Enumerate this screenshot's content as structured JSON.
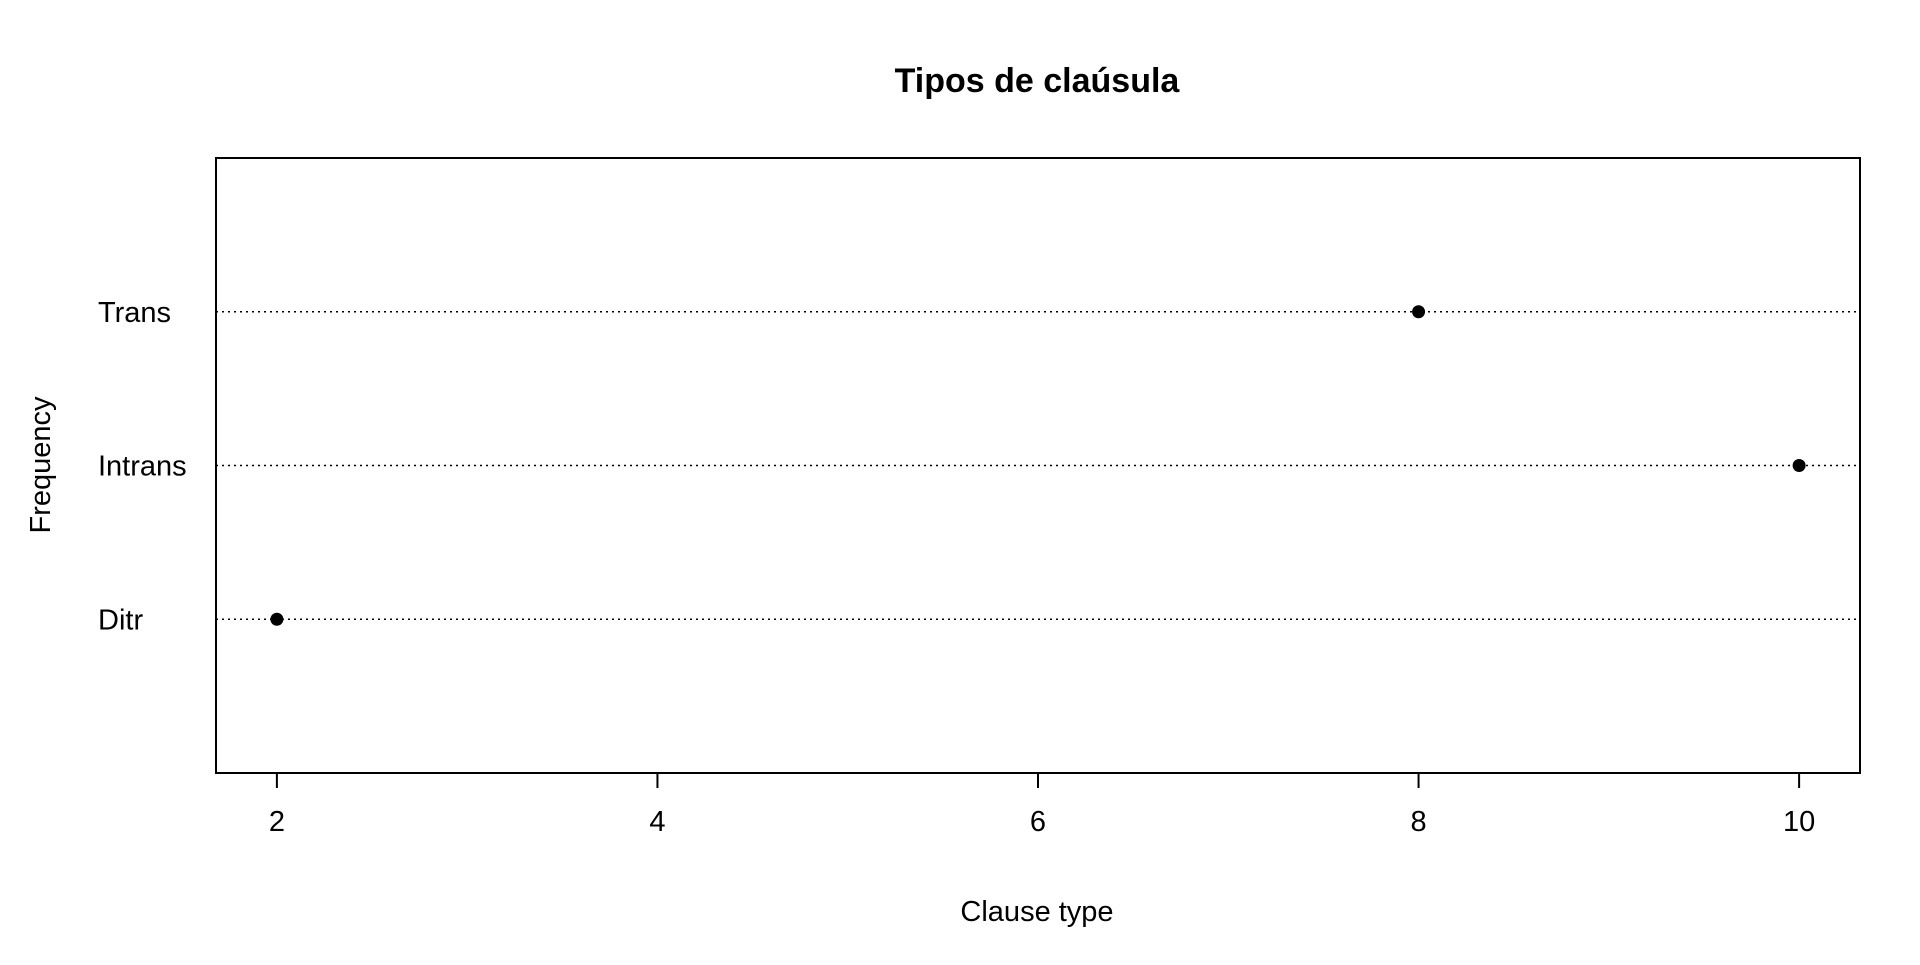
{
  "chart_data": {
    "type": "scatter",
    "subtype": "dotchart",
    "title": "Tipos de claúsula",
    "xlabel": "Clause type",
    "ylabel": "Frequency",
    "xlim": [
      1.68,
      10.32
    ],
    "xticks": [
      2,
      4,
      6,
      8,
      10
    ],
    "categories": [
      "Trans",
      "Intrans",
      "Ditr"
    ],
    "values": [
      8,
      10,
      2
    ],
    "grid": "dotted horizontal line per category",
    "legend": "none",
    "colors": {
      "point": "#000000",
      "frame": "#000000",
      "gridline": "#000000"
    }
  }
}
